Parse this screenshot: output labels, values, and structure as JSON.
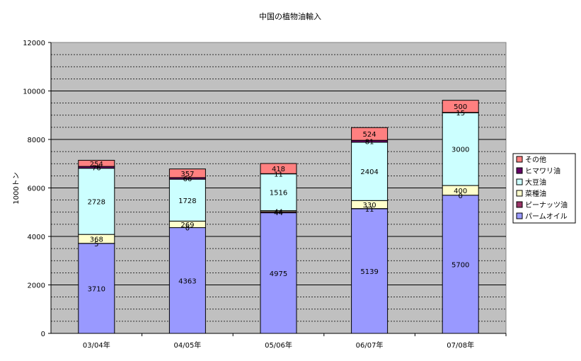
{
  "chart_data": {
    "type": "bar",
    "stacked": true,
    "title": "中国の植物油輸入",
    "ylabel": "1000トン",
    "xlabel": "",
    "ylim": [
      0,
      12000
    ],
    "yticks": [
      0,
      2000,
      4000,
      6000,
      8000,
      10000,
      12000
    ],
    "grid": true,
    "legend_position": "right",
    "categories": [
      "03/04年",
      "04/05年",
      "05/06年",
      "06/07年",
      "07/08年"
    ],
    "series": [
      {
        "name": "パームオイル",
        "values": [
          3710,
          4363,
          4975,
          5139,
          5700
        ],
        "labels": [
          "3710",
          "4363",
          "4975",
          "5139",
          "5700"
        ],
        "color": "#9999FF"
      },
      {
        "name": "ピーナッツ油",
        "values": [
          5,
          0,
          44,
          11,
          0
        ],
        "labels": [
          "5",
          "0",
          "44",
          "11",
          "0"
        ],
        "color": "#993366"
      },
      {
        "name": "菜種油",
        "values": [
          368,
          269,
          44,
          330,
          400
        ],
        "labels": [
          "368",
          "269",
          "44",
          "330",
          "400"
        ],
        "color": "#FFFFCC"
      },
      {
        "name": "大豆油",
        "values": [
          2728,
          1728,
          1516,
          2404,
          3000
        ],
        "labels": [
          "2728",
          "1728",
          "1516",
          "2404",
          "3000"
        ],
        "color": "#CCFFFF"
      },
      {
        "name": "ヒマワリ油",
        "values": [
          76,
          66,
          11,
          81,
          15
        ],
        "labels": [
          "76",
          "66",
          "11",
          "81",
          "15"
        ],
        "color": "#660066"
      },
      {
        "name": "その他",
        "values": [
          254,
          357,
          418,
          524,
          500
        ],
        "labels": [
          "254",
          "357",
          "418",
          "524",
          "500"
        ],
        "color": "#FF8080"
      }
    ]
  }
}
